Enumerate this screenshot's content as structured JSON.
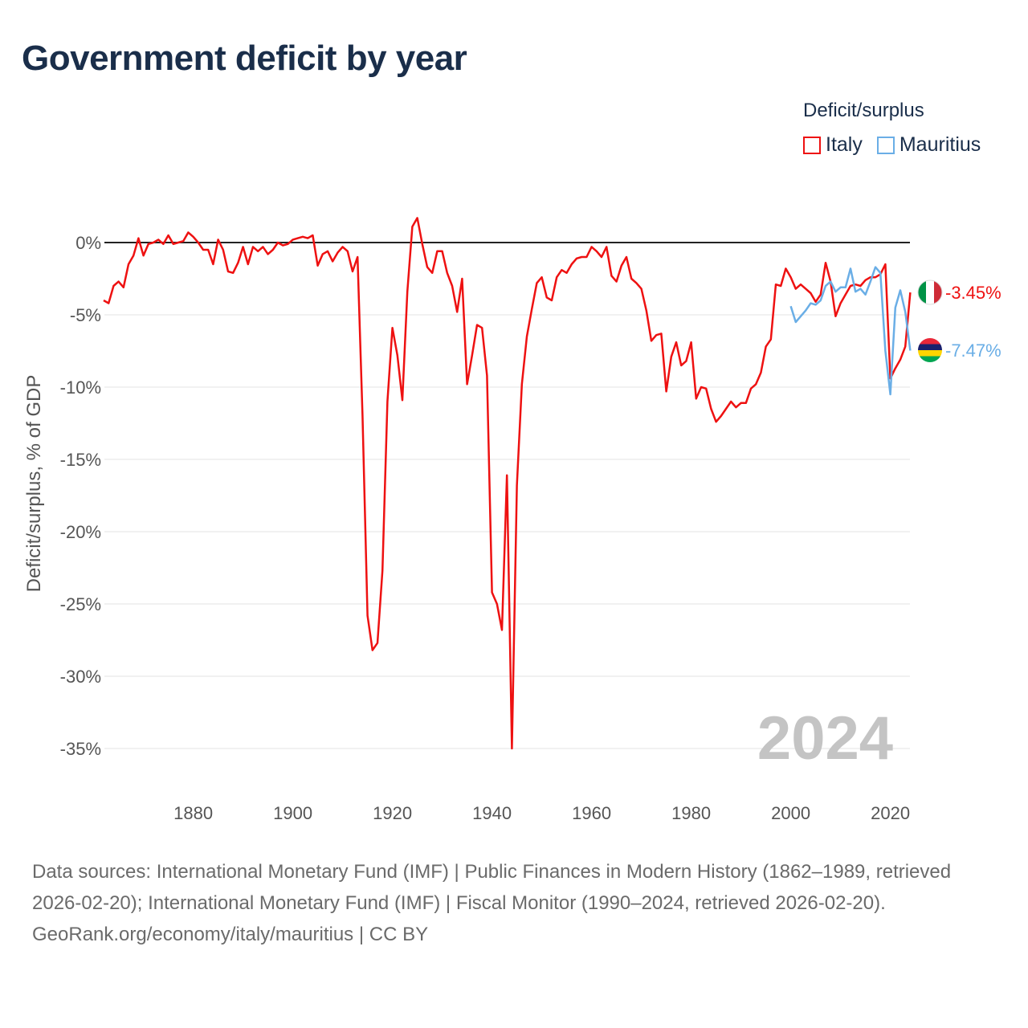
{
  "title": "Government deficit by year",
  "legend": {
    "title": "Deficit/surplus",
    "items": [
      {
        "name": "Italy",
        "color": "#ee1111"
      },
      {
        "name": "Mauritius",
        "color": "#6aaee6"
      }
    ]
  },
  "chart_data": {
    "type": "line",
    "title": "Government deficit by year",
    "xlabel": "",
    "ylabel": "Deficit/surplus, % of GDP",
    "xlim": [
      1862,
      2024
    ],
    "ylim": [
      -35,
      0
    ],
    "xticks": [
      1880,
      1900,
      1920,
      1940,
      1960,
      1980,
      2000,
      2020
    ],
    "xtick_labels": [
      "1880",
      "1900",
      "1920",
      "1940",
      "1960",
      "1980",
      "2000",
      "2020"
    ],
    "yticks": [
      0,
      -5,
      -10,
      -15,
      -20,
      -25,
      -30,
      -35
    ],
    "ytick_labels": [
      "0%",
      "-5%",
      "-10%",
      "-15%",
      "-20%",
      "-25%",
      "-30%",
      "-35%"
    ],
    "grid": true,
    "legend_position": "top-right",
    "year_label": "2024",
    "series": [
      {
        "name": "Italy",
        "color": "#ee1111",
        "end_label": "-3.45%",
        "points": [
          [
            1862,
            -4.0
          ],
          [
            1863,
            -4.2
          ],
          [
            1864,
            -3.0
          ],
          [
            1865,
            -2.7
          ],
          [
            1866,
            -3.1
          ],
          [
            1867,
            -1.5
          ],
          [
            1868,
            -0.9
          ],
          [
            1869,
            0.3
          ],
          [
            1870,
            -0.9
          ],
          [
            1871,
            -0.1
          ],
          [
            1872,
            0.0
          ],
          [
            1873,
            0.2
          ],
          [
            1874,
            -0.1
          ],
          [
            1875,
            0.5
          ],
          [
            1876,
            -0.1
          ],
          [
            1877,
            0.0
          ],
          [
            1878,
            0.1
          ],
          [
            1879,
            0.7
          ],
          [
            1880,
            0.4
          ],
          [
            1881,
            0.0
          ],
          [
            1882,
            -0.5
          ],
          [
            1883,
            -0.5
          ],
          [
            1884,
            -1.5
          ],
          [
            1885,
            0.2
          ],
          [
            1886,
            -0.5
          ],
          [
            1887,
            -2.0
          ],
          [
            1888,
            -2.1
          ],
          [
            1889,
            -1.4
          ],
          [
            1890,
            -0.3
          ],
          [
            1891,
            -1.5
          ],
          [
            1892,
            -0.3
          ],
          [
            1893,
            -0.6
          ],
          [
            1894,
            -0.3
          ],
          [
            1895,
            -0.8
          ],
          [
            1896,
            -0.5
          ],
          [
            1897,
            0.0
          ],
          [
            1898,
            -0.2
          ],
          [
            1899,
            -0.1
          ],
          [
            1900,
            0.2
          ],
          [
            1901,
            0.3
          ],
          [
            1902,
            0.4
          ],
          [
            1903,
            0.3
          ],
          [
            1904,
            0.5
          ],
          [
            1905,
            -1.6
          ],
          [
            1906,
            -0.8
          ],
          [
            1907,
            -0.6
          ],
          [
            1908,
            -1.3
          ],
          [
            1909,
            -0.7
          ],
          [
            1910,
            -0.3
          ],
          [
            1911,
            -0.6
          ],
          [
            1912,
            -2.0
          ],
          [
            1913,
            -1.0
          ],
          [
            1914,
            -12.0
          ],
          [
            1915,
            -25.8
          ],
          [
            1916,
            -28.2
          ],
          [
            1917,
            -27.7
          ],
          [
            1918,
            -22.7
          ],
          [
            1919,
            -11.0
          ],
          [
            1920,
            -5.9
          ],
          [
            1921,
            -7.8
          ],
          [
            1922,
            -10.9
          ],
          [
            1923,
            -3.4
          ],
          [
            1924,
            1.1
          ],
          [
            1925,
            1.7
          ],
          [
            1926,
            -0.1
          ],
          [
            1927,
            -1.7
          ],
          [
            1928,
            -2.1
          ],
          [
            1929,
            -0.6
          ],
          [
            1930,
            -0.6
          ],
          [
            1931,
            -2.1
          ],
          [
            1932,
            -3.0
          ],
          [
            1933,
            -4.8
          ],
          [
            1934,
            -2.5
          ],
          [
            1935,
            -9.8
          ],
          [
            1936,
            -7.8
          ],
          [
            1937,
            -5.7
          ],
          [
            1938,
            -5.9
          ],
          [
            1939,
            -9.2
          ],
          [
            1940,
            -24.2
          ],
          [
            1941,
            -25.0
          ],
          [
            1942,
            -26.8
          ],
          [
            1943,
            -16.1
          ],
          [
            1944,
            -35.0
          ],
          [
            1945,
            -16.8
          ],
          [
            1946,
            -9.8
          ],
          [
            1947,
            -6.5
          ],
          [
            1948,
            -4.6
          ],
          [
            1949,
            -2.8
          ],
          [
            1950,
            -2.4
          ],
          [
            1951,
            -3.8
          ],
          [
            1952,
            -4.0
          ],
          [
            1953,
            -2.4
          ],
          [
            1954,
            -1.9
          ],
          [
            1955,
            -2.1
          ],
          [
            1956,
            -1.5
          ],
          [
            1957,
            -1.1
          ],
          [
            1958,
            -1.0
          ],
          [
            1959,
            -1.0
          ],
          [
            1960,
            -0.3
          ],
          [
            1961,
            -0.6
          ],
          [
            1962,
            -1.0
          ],
          [
            1963,
            -0.3
          ],
          [
            1964,
            -2.3
          ],
          [
            1965,
            -2.7
          ],
          [
            1966,
            -1.6
          ],
          [
            1967,
            -1.0
          ],
          [
            1968,
            -2.5
          ],
          [
            1969,
            -2.8
          ],
          [
            1970,
            -3.2
          ],
          [
            1971,
            -4.7
          ],
          [
            1972,
            -6.8
          ],
          [
            1973,
            -6.4
          ],
          [
            1974,
            -6.3
          ],
          [
            1975,
            -10.3
          ],
          [
            1976,
            -7.9
          ],
          [
            1977,
            -6.9
          ],
          [
            1978,
            -8.5
          ],
          [
            1979,
            -8.2
          ],
          [
            1980,
            -6.9
          ],
          [
            1981,
            -10.8
          ],
          [
            1982,
            -10.0
          ],
          [
            1983,
            -10.1
          ],
          [
            1984,
            -11.5
          ],
          [
            1985,
            -12.4
          ],
          [
            1986,
            -12.0
          ],
          [
            1987,
            -11.5
          ],
          [
            1988,
            -11.0
          ],
          [
            1989,
            -11.4
          ],
          [
            1990,
            -11.1
          ],
          [
            1991,
            -11.1
          ],
          [
            1992,
            -10.1
          ],
          [
            1993,
            -9.8
          ],
          [
            1994,
            -9.0
          ],
          [
            1995,
            -7.2
          ],
          [
            1996,
            -6.7
          ],
          [
            1997,
            -2.9
          ],
          [
            1998,
            -3.0
          ],
          [
            1999,
            -1.8
          ],
          [
            2000,
            -2.4
          ],
          [
            2001,
            -3.2
          ],
          [
            2002,
            -2.9
          ],
          [
            2003,
            -3.2
          ],
          [
            2004,
            -3.5
          ],
          [
            2005,
            -4.1
          ],
          [
            2006,
            -3.6
          ],
          [
            2007,
            -1.4
          ],
          [
            2008,
            -2.7
          ],
          [
            2009,
            -5.1
          ],
          [
            2010,
            -4.2
          ],
          [
            2011,
            -3.6
          ],
          [
            2012,
            -3.0
          ],
          [
            2013,
            -2.9
          ],
          [
            2014,
            -3.0
          ],
          [
            2015,
            -2.6
          ],
          [
            2016,
            -2.4
          ],
          [
            2017,
            -2.4
          ],
          [
            2018,
            -2.2
          ],
          [
            2019,
            -1.5
          ],
          [
            2020,
            -9.4
          ],
          [
            2021,
            -8.7
          ],
          [
            2022,
            -8.1
          ],
          [
            2023,
            -7.2
          ],
          [
            2024,
            -3.45
          ]
        ]
      },
      {
        "name": "Mauritius",
        "color": "#6aaee6",
        "end_label": "-7.47%",
        "points": [
          [
            2000,
            -4.4
          ],
          [
            2001,
            -5.5
          ],
          [
            2002,
            -5.1
          ],
          [
            2003,
            -4.7
          ],
          [
            2004,
            -4.2
          ],
          [
            2005,
            -4.3
          ],
          [
            2006,
            -4.0
          ],
          [
            2007,
            -3.0
          ],
          [
            2008,
            -2.7
          ],
          [
            2009,
            -3.4
          ],
          [
            2010,
            -3.1
          ],
          [
            2011,
            -3.1
          ],
          [
            2012,
            -1.8
          ],
          [
            2013,
            -3.4
          ],
          [
            2014,
            -3.2
          ],
          [
            2015,
            -3.6
          ],
          [
            2016,
            -2.7
          ],
          [
            2017,
            -1.7
          ],
          [
            2018,
            -2.1
          ],
          [
            2019,
            -7.5
          ],
          [
            2020,
            -10.5
          ],
          [
            2021,
            -4.5
          ],
          [
            2022,
            -3.3
          ],
          [
            2023,
            -4.8
          ],
          [
            2024,
            -7.47
          ]
        ]
      }
    ]
  },
  "footer": {
    "sources": "Data sources: International Monetary Fund (IMF) | Public Finances in Modern History (1862–1989, retrieved 2026-02-20); International Monetary Fund (IMF) | Fiscal Monitor (1990–2024, retrieved 2026-02-20).",
    "credit": "GeoRank.org/economy/italy/mauritius | CC BY"
  }
}
